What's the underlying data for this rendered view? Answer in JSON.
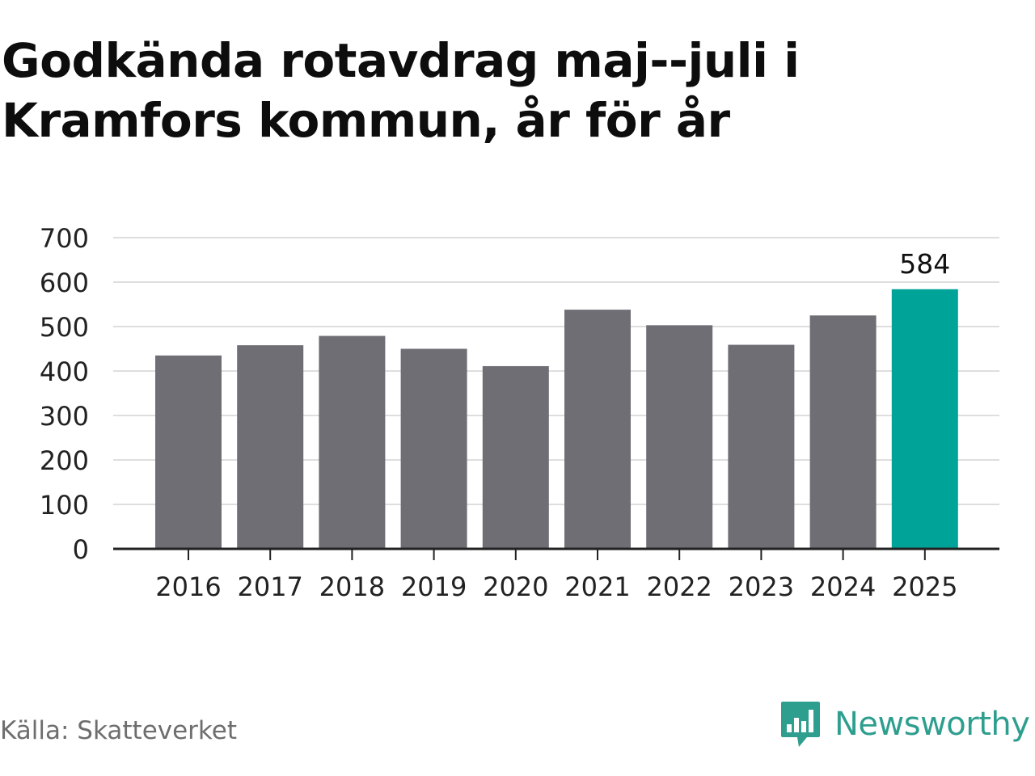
{
  "title_line1": "Godkända rotavdrag maj--juli i",
  "title_line2": "Kramfors kommun, år för år",
  "source": "Källa: Skatteverket",
  "brand": "Newsworthy",
  "colors": {
    "bar": "#6f6e74",
    "highlight": "#00a398",
    "grid": "#dedede",
    "axis": "#222222",
    "brand": "#2e9e8e"
  },
  "chart_data": {
    "type": "bar",
    "categories": [
      "2016",
      "2017",
      "2018",
      "2019",
      "2020",
      "2021",
      "2022",
      "2023",
      "2024",
      "2025"
    ],
    "values": [
      435,
      458,
      479,
      450,
      411,
      538,
      503,
      459,
      525,
      584
    ],
    "highlight_index": 9,
    "data_labels": [
      {
        "index": 9,
        "text": "584"
      }
    ],
    "yticks": [
      0,
      100,
      200,
      300,
      400,
      500,
      600,
      700
    ],
    "ylim": [
      0,
      700
    ],
    "grid": true,
    "legend": "none"
  }
}
